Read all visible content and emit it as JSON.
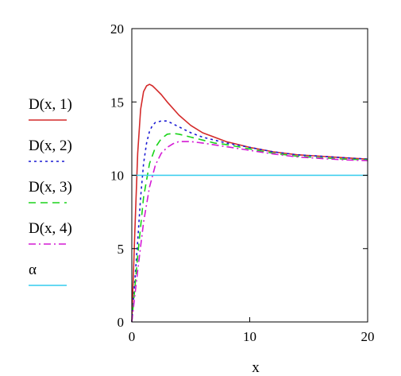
{
  "chart_data": {
    "type": "line",
    "title": "",
    "xlabel": "x",
    "ylabel": "",
    "xlim": [
      0,
      20
    ],
    "ylim": [
      0,
      20
    ],
    "x_ticks": [
      "0",
      "10",
      "20"
    ],
    "y_ticks": [
      "0",
      "5",
      "10",
      "15",
      "20"
    ],
    "grid": false,
    "legend_position": "left",
    "series": [
      {
        "name": "D(x, 1)",
        "color": "#d42a2a",
        "style": "solid",
        "x": [
          0,
          0.25,
          0.5,
          0.75,
          1.0,
          1.25,
          1.5,
          1.75,
          2.0,
          2.5,
          3.0,
          4.0,
          5.0,
          6.0,
          7.0,
          8.0,
          10.0,
          12.0,
          14.0,
          16.0,
          18.0,
          20.0
        ],
        "y": [
          0,
          6.0,
          11.5,
          14.5,
          15.7,
          16.1,
          16.2,
          16.1,
          15.9,
          15.5,
          15.0,
          14.1,
          13.4,
          12.9,
          12.6,
          12.3,
          11.9,
          11.6,
          11.4,
          11.3,
          11.2,
          11.1
        ]
      },
      {
        "name": "D(x, 2)",
        "color": "#1a1ad4",
        "style": "dotted",
        "x": [
          0,
          0.5,
          0.75,
          1.0,
          1.25,
          1.5,
          1.75,
          2.0,
          2.5,
          3.0,
          3.5,
          4.0,
          5.0,
          6.0,
          8.0,
          10.0,
          12.0,
          14.0,
          16.0,
          18.0,
          20.0
        ],
        "y": [
          0,
          5.5,
          8.5,
          10.8,
          12.2,
          13.0,
          13.4,
          13.6,
          13.7,
          13.7,
          13.5,
          13.3,
          12.9,
          12.6,
          12.2,
          11.9,
          11.6,
          11.4,
          11.3,
          11.2,
          11.1
        ]
      },
      {
        "name": "D(x, 3)",
        "color": "#1ad41a",
        "style": "dashed",
        "x": [
          0,
          0.5,
          1.0,
          1.5,
          2.0,
          2.5,
          3.0,
          3.5,
          4.0,
          5.0,
          6.0,
          7.0,
          8.0,
          10.0,
          12.0,
          14.0,
          16.0,
          18.0,
          20.0
        ],
        "y": [
          0,
          4.5,
          8.5,
          10.8,
          11.9,
          12.5,
          12.8,
          12.85,
          12.8,
          12.6,
          12.4,
          12.2,
          12.1,
          11.8,
          11.5,
          11.3,
          11.2,
          11.1,
          11.05
        ]
      },
      {
        "name": "D(x, 4)",
        "color": "#d41ad4",
        "style": "dashdot",
        "x": [
          0,
          0.5,
          1.0,
          1.5,
          2.0,
          2.5,
          3.0,
          3.5,
          4.0,
          5.0,
          6.0,
          8.0,
          10.0,
          12.0,
          14.0,
          16.0,
          18.0,
          20.0
        ],
        "y": [
          0,
          3.5,
          6.8,
          9.2,
          10.7,
          11.5,
          11.9,
          12.15,
          12.3,
          12.3,
          12.2,
          11.95,
          11.7,
          11.45,
          11.25,
          11.15,
          11.05,
          11.0
        ]
      },
      {
        "name": "α",
        "color": "#33ccee",
        "style": "solid",
        "x": [
          0,
          20
        ],
        "y": [
          10,
          10
        ]
      }
    ]
  }
}
